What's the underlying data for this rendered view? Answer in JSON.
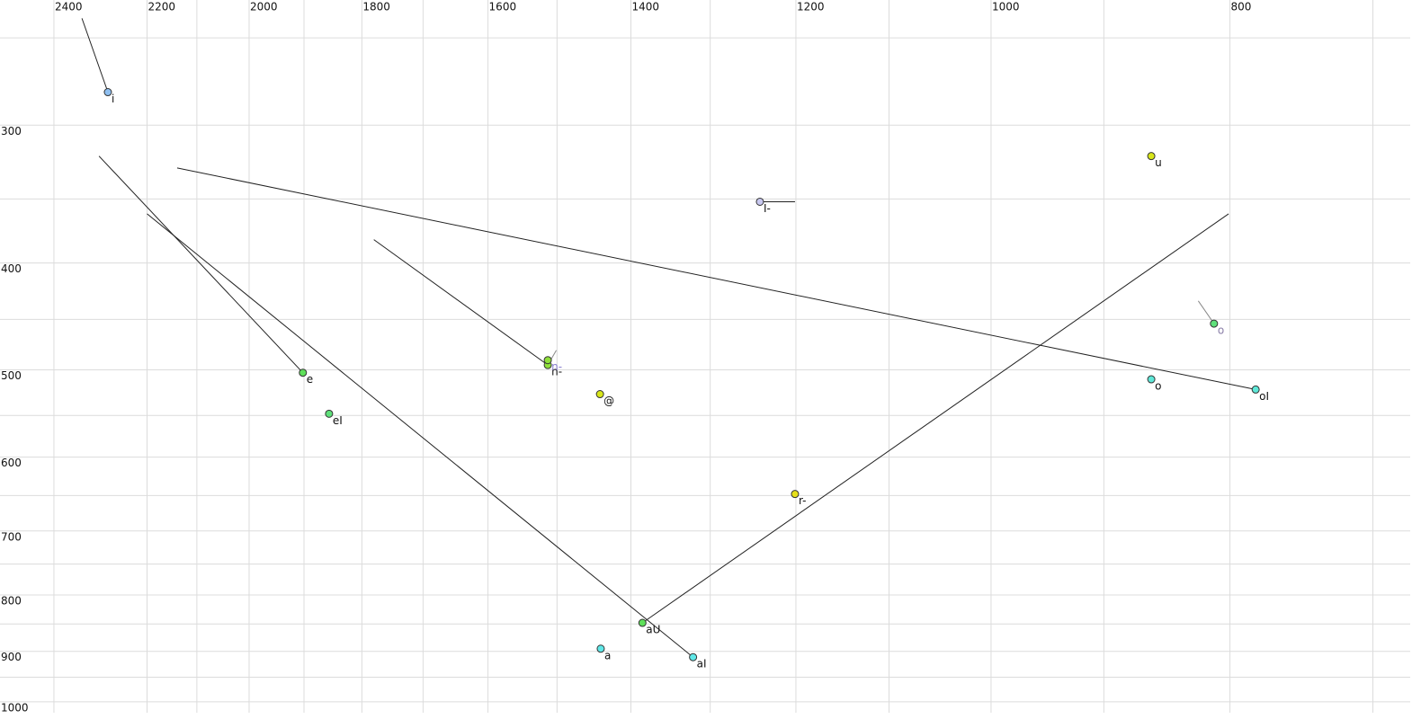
{
  "chart_data": {
    "type": "scatter",
    "xlog": true,
    "ylog": true,
    "grid": true,
    "xlim": [
      2524,
      676
    ],
    "ylim": [
      231,
      1023
    ],
    "xticks": [
      2400,
      2200,
      2000,
      1800,
      1600,
      1400,
      1200,
      1000,
      800
    ],
    "xminor": [
      2100,
      1900,
      1700,
      1500,
      1300,
      1100,
      900,
      700
    ],
    "yticks": [
      300,
      400,
      500,
      600,
      700,
      800,
      900,
      1000
    ],
    "yminor": [
      250,
      350,
      450,
      550,
      650,
      750,
      850,
      950
    ],
    "points": [
      {
        "label": "i",
        "color": "#8fbff0",
        "x": 2282,
        "y": 280
      },
      {
        "label": "u",
        "color": "#d8e61a",
        "x": 861,
        "y": 320
      },
      {
        "label": "I-",
        "color": "#c8c8f0",
        "x": 1241,
        "y": 352
      },
      {
        "label": "o",
        "color": "#5fe07a",
        "label_color": "#8a7fa8",
        "x": 812,
        "y": 454
      },
      {
        "label": "n-",
        "color": "#8fe03a",
        "x": 1513,
        "y": 495
      },
      {
        "label": "n-",
        "color": "#8fe03a",
        "label_color": "#8a7fd0",
        "x": 1513,
        "y": 490
      },
      {
        "label": "e",
        "color": "#5fe05a",
        "x": 1902,
        "y": 503
      },
      {
        "label": "o",
        "color": "#5fe8d8",
        "x": 861,
        "y": 510
      },
      {
        "label": "oI",
        "color": "#5fe8d8",
        "x": 781,
        "y": 521
      },
      {
        "label": "@",
        "color": "#d8e61a",
        "x": 1441,
        "y": 526
      },
      {
        "label": "eI",
        "color": "#5fe07a",
        "x": 1856,
        "y": 548
      },
      {
        "label": "r-",
        "color": "#e6e01a",
        "x": 1201,
        "y": 648
      },
      {
        "label": "aU",
        "color": "#5fe05a",
        "x": 1385,
        "y": 848
      },
      {
        "label": "a",
        "color": "#5fe8e8",
        "x": 1440,
        "y": 895
      },
      {
        "label": "aI",
        "color": "#5fe8e8",
        "x": 1321,
        "y": 911
      }
    ],
    "trajectories": [
      {
        "color": "#222222",
        "x": [
          2338,
          2282
        ],
        "y": [
          240,
          280
        ]
      },
      {
        "color": "#222222",
        "x": [
          2301,
          1902
        ],
        "y": [
          320,
          503
        ]
      },
      {
        "color": "#222222",
        "x": [
          2200,
          1321
        ],
        "y": [
          361,
          911
        ]
      },
      {
        "color": "#222222",
        "x": [
          2139,
          781
        ],
        "y": [
          328,
          521
        ]
      },
      {
        "color": "#222222",
        "x": [
          1780,
          1513
        ],
        "y": [
          381,
          495
        ]
      },
      {
        "color": "#222222",
        "x": [
          1385,
          801
        ],
        "y": [
          848,
          361
        ]
      },
      {
        "color": "#222222",
        "x": [
          1241,
          1201
        ],
        "y": [
          352,
          352
        ]
      },
      {
        "color": "#888888",
        "x": [
          824,
          812
        ],
        "y": [
          433,
          454
        ]
      },
      {
        "color": "#888888",
        "x": [
          1513,
          1501
        ],
        "y": [
          495,
          480
        ]
      }
    ]
  }
}
